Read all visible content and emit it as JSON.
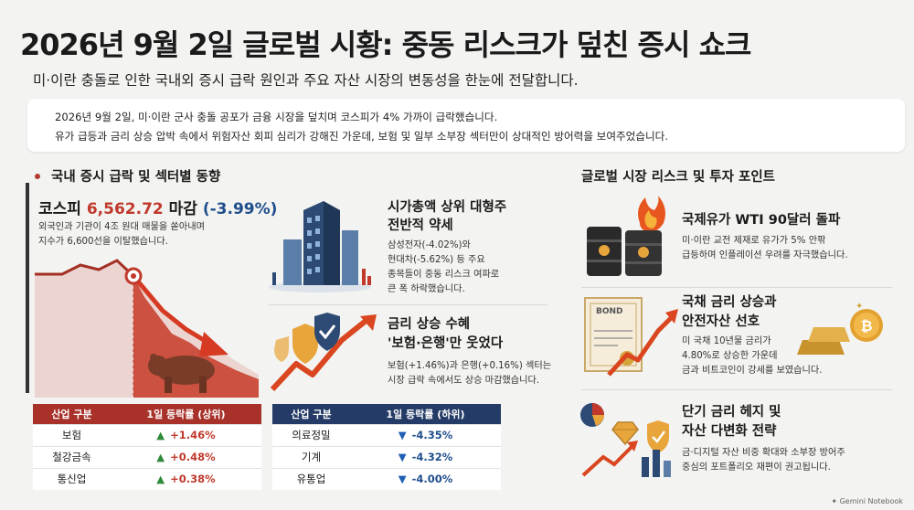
{
  "header": {
    "title": "2026년 9월 2일 글로벌 시황: 중동 리스크가 덮친 증시 쇼크",
    "subtitle": "미·이란 충돌로 인한 국내외 증시 급락 원인과 주요 자산 시장의 변동성을 한눈에 전달합니다."
  },
  "summary": {
    "line1": "2026년 9월 2일, 미·이란 군사 충돌 공포가 금융 시장을 덮치며 코스피가 4% 가까이 급락했습니다.",
    "line2": "유가 급등과 금리 상승 압박 속에서 위험자산 회피 심리가 강해진 가운데, 보험 및 일부 소부장 섹터만이 상대적인 방어력을 보여주었습니다."
  },
  "left_section": {
    "heading": "국내 증시 급락 및 섹터별 동향",
    "kospi": {
      "label": "코스피",
      "value": "6,562.72",
      "suffix": "마감",
      "change": "(-3.99%)",
      "desc_line1": "외국인과 기관이 4조 원대 매물을 쏟아내며",
      "desc_line2": "지수가 6,600선을 이탈했습니다."
    },
    "card_large_caps": {
      "title_line1": "시가총액 상위 대형주",
      "title_line2": "전반적 약세",
      "desc_line1": "삼성전자(-4.02%)와",
      "desc_line2": "현대차(-5.62%) 등 주요",
      "desc_line3": "종목들이 중동 리스크 여파로",
      "desc_line4": "큰 폭 하락했습니다."
    },
    "card_rate_benefit": {
      "title_line1": "금리 상승 수혜",
      "title_line2": "'보험·은행'만 웃었다",
      "desc_line1": "보험(+1.46%)과 은행(+0.16%) 섹터는",
      "desc_line2": "시장 급락 속에서도 상승 마감했습니다."
    }
  },
  "table_top": {
    "headers": [
      "산업 구분",
      "1일 등락률 (상위)"
    ],
    "rows": [
      {
        "name": "보험",
        "value": "+1.46%"
      },
      {
        "name": "철강금속",
        "value": "+0.48%"
      },
      {
        "name": "통신업",
        "value": "+0.38%"
      }
    ]
  },
  "table_bottom": {
    "headers": [
      "산업 구분",
      "1일 등락률 (하위)"
    ],
    "rows": [
      {
        "name": "의료정밀",
        "value": "-4.35%"
      },
      {
        "name": "기계",
        "value": "-4.32%"
      },
      {
        "name": "유통업",
        "value": "-4.00%"
      }
    ]
  },
  "right_section": {
    "heading": "글로벌 시장 리스크 및 투자 포인트",
    "items": [
      {
        "icon": "oil-barrel-fire-icon",
        "title_line1": "국제유가 WTI 90달러 돌파",
        "title_line2": "",
        "desc_line1": "미·이란 교전 제재로 유가가 5% 안팎",
        "desc_line2": "급등하며 인플레이션 우려를 자극했습니다."
      },
      {
        "icon": "bond-gold-bitcoin-icon",
        "badge": "BOND",
        "title_line1": "국채 금리 상승과",
        "title_line2": "안전자산 선호",
        "desc_line1": "미 국채 10년물 금리가",
        "desc_line2": "4.80%로 상승한 가운데",
        "desc_line3": "금과 비트코인이 강세를 보였습니다."
      },
      {
        "icon": "diversification-icon",
        "title_line1": "단기 금리 헤지 및",
        "title_line2": "자산 다변화 전략",
        "desc_line1": "금·디지털 자산 비중 확대와 소부장 방어주",
        "desc_line2": "중심의 포트폴리오 재편이 권고됩니다."
      }
    ]
  },
  "footer": {
    "brand": "Gemini Notebook"
  },
  "colors": {
    "accent_red": "#c0392b",
    "navy": "#233b66",
    "table_red": "#a8322a",
    "up_green": "#2e8b3a",
    "down_blue": "#1f5fb4"
  }
}
